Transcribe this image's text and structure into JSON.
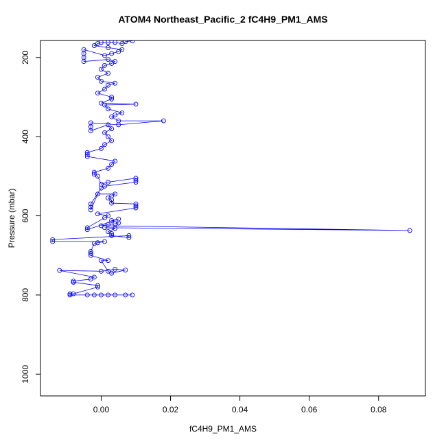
{
  "chart_data": {
    "type": "scatter",
    "title": "ATOM4 Northeast_Pacific_2 fC4H9_PM1_AMS",
    "xlabel": "fC4H9_PM1_AMS",
    "ylabel": "Pressure (mbar)",
    "xlim": [
      -0.0175,
      0.0935
    ],
    "ylim": [
      1055,
      157
    ],
    "y_reversed": true,
    "x_ticks": [
      0.0,
      0.02,
      0.04,
      0.06,
      0.08
    ],
    "x_tick_labels": [
      "0.00",
      "0.02",
      "0.04",
      "0.06",
      "0.08"
    ],
    "y_ticks": [
      200,
      400,
      600,
      800,
      1000
    ],
    "y_tick_labels": [
      "200",
      "400",
      "600",
      "800",
      "1000"
    ],
    "series_color": "#0000ff",
    "marker": "open-circle",
    "connected": true,
    "grid": false,
    "series": [
      {
        "points": [
          [
            0.0,
            800
          ],
          [
            -0.002,
            800
          ],
          [
            -0.004,
            800
          ],
          [
            0.002,
            800
          ],
          [
            0.004,
            800
          ],
          [
            0.007,
            800
          ],
          [
            0.009,
            800
          ],
          [
            -0.009,
            800
          ],
          [
            -0.009,
            797
          ],
          [
            -0.008,
            797
          ],
          [
            -0.001,
            780
          ],
          [
            -0.001,
            776
          ],
          [
            -0.008,
            768
          ],
          [
            -0.008,
            765
          ],
          [
            -0.003,
            760
          ],
          [
            -0.002,
            755
          ],
          [
            -0.012,
            738
          ],
          [
            0.0,
            740
          ],
          [
            0.004,
            735
          ],
          [
            0.007,
            737
          ],
          [
            0.003,
            745
          ],
          [
            0.002,
            740
          ],
          [
            0.0,
            713
          ],
          [
            0.002,
            713
          ],
          [
            -0.003,
            700
          ],
          [
            -0.003,
            695
          ],
          [
            -0.003,
            690
          ],
          [
            -0.002,
            670
          ],
          [
            -0.001,
            668
          ],
          [
            0.001,
            665
          ],
          [
            -0.014,
            665
          ],
          [
            -0.014,
            660
          ],
          [
            0.008,
            650
          ],
          [
            0.008,
            655
          ],
          [
            0.003,
            650
          ],
          [
            0.003,
            645
          ],
          [
            0.002,
            640
          ],
          [
            0.004,
            632
          ],
          [
            0.001,
            630
          ],
          [
            0.089,
            637
          ],
          [
            0.0,
            625
          ],
          [
            0.002,
            622
          ],
          [
            0.004,
            620
          ],
          [
            0.005,
            618
          ],
          [
            0.003,
            612
          ],
          [
            0.005,
            608
          ],
          [
            -0.004,
            635
          ],
          [
            -0.004,
            630
          ],
          [
            0.001,
            605
          ],
          [
            0.002,
            600
          ],
          [
            -0.001,
            595
          ],
          [
            0.01,
            580
          ],
          [
            0.01,
            575
          ],
          [
            0.01,
            570
          ],
          [
            0.003,
            568
          ],
          [
            0.003,
            560
          ],
          [
            0.002,
            555
          ],
          [
            0.003,
            550
          ],
          [
            0.004,
            545
          ],
          [
            -0.001,
            545
          ],
          [
            -0.003,
            585
          ],
          [
            -0.003,
            578
          ],
          [
            -0.003,
            570
          ],
          [
            0.0,
            530
          ],
          [
            0.001,
            525
          ],
          [
            0.01,
            515
          ],
          [
            0.01,
            510
          ],
          [
            0.01,
            505
          ],
          [
            0.002,
            515
          ],
          [
            0.0,
            520
          ],
          [
            -0.001,
            500
          ],
          [
            -0.002,
            495
          ],
          [
            -0.002,
            490
          ],
          [
            0.002,
            480
          ],
          [
            0.003,
            470
          ],
          [
            0.004,
            462
          ],
          [
            -0.004,
            450
          ],
          [
            -0.004,
            445
          ],
          [
            -0.004,
            440
          ],
          [
            0.0,
            430
          ],
          [
            0.001,
            420
          ],
          [
            0.003,
            410
          ],
          [
            0.002,
            400
          ],
          [
            0.001,
            390
          ],
          [
            0.003,
            380
          ],
          [
            0.002,
            370
          ],
          [
            -0.003,
            385
          ],
          [
            -0.003,
            375
          ],
          [
            -0.003,
            365
          ],
          [
            0.005,
            370
          ],
          [
            0.018,
            360
          ],
          [
            0.005,
            360
          ],
          [
            0.003,
            350
          ],
          [
            0.004,
            345
          ],
          [
            0.006,
            340
          ],
          [
            0.002,
            330
          ],
          [
            0.001,
            320
          ],
          [
            0.01,
            318
          ],
          [
            0.0,
            315
          ],
          [
            0.003,
            305
          ],
          [
            0.003,
            300
          ],
          [
            -0.001,
            290
          ],
          [
            0.001,
            280
          ],
          [
            0.002,
            270
          ],
          [
            0.004,
            265
          ],
          [
            0.0,
            260
          ],
          [
            -0.001,
            250
          ],
          [
            0.002,
            240
          ],
          [
            0.0,
            230
          ],
          [
            0.001,
            220
          ],
          [
            0.003,
            215
          ],
          [
            0.004,
            210
          ],
          [
            0.002,
            205
          ],
          [
            -0.005,
            210
          ],
          [
            -0.005,
            200
          ],
          [
            -0.005,
            190
          ],
          [
            -0.005,
            180
          ],
          [
            0.001,
            195
          ],
          [
            0.003,
            190
          ],
          [
            0.005,
            185
          ],
          [
            0.006,
            180
          ],
          [
            0.002,
            175
          ],
          [
            -0.002,
            170
          ],
          [
            -0.001,
            165
          ],
          [
            0.0,
            162
          ],
          [
            0.002,
            162
          ],
          [
            0.004,
            162
          ],
          [
            0.006,
            165
          ],
          [
            0.007,
            160
          ],
          [
            0.009,
            158
          ]
        ]
      }
    ]
  }
}
